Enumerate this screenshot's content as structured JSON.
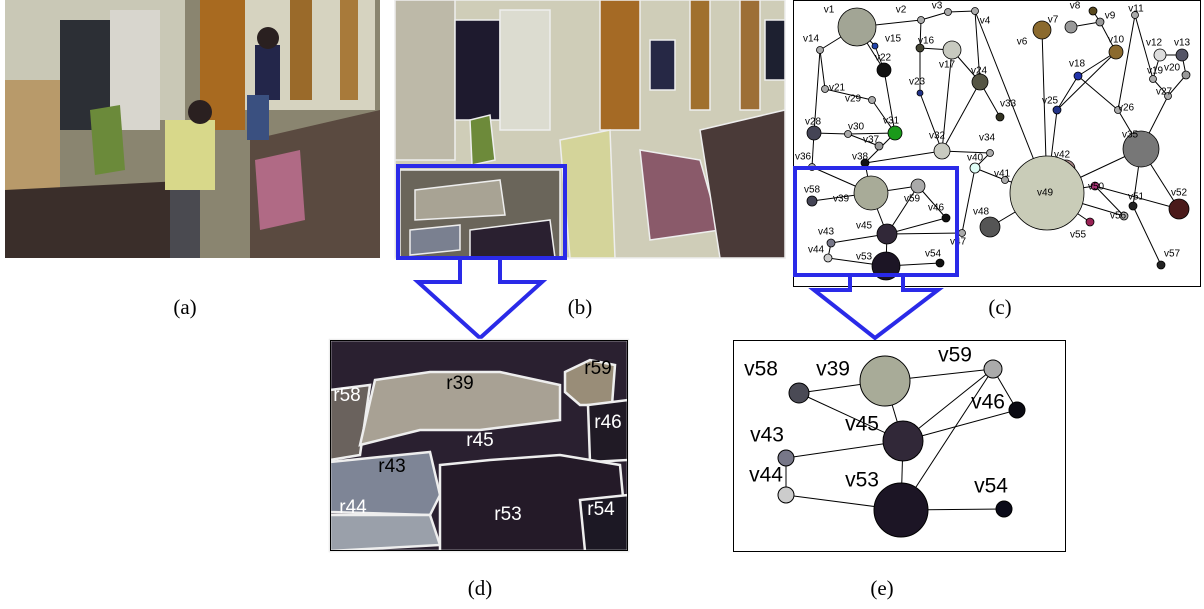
{
  "captions": [
    "(a)",
    "(b)",
    "(c)",
    "(d)",
    "(e)"
  ],
  "graph_c_nodes": [
    "v1",
    "v2",
    "v3",
    "v4",
    "v6",
    "v7",
    "v8",
    "v9",
    "v10",
    "v11",
    "v12",
    "v13",
    "v14",
    "v15",
    "v16",
    "v17",
    "v18",
    "v19",
    "v20",
    "v21",
    "v22",
    "v23",
    "v24",
    "v25",
    "v26",
    "v27",
    "v28",
    "v29",
    "v30",
    "v31",
    "v32",
    "v33",
    "v34",
    "v35",
    "v36",
    "v37",
    "v38",
    "v40",
    "v41",
    "v42",
    "v49",
    "v50",
    "v51",
    "v52",
    "v55",
    "v56",
    "v57",
    "v48",
    "v39",
    "v58",
    "v59",
    "v46",
    "v45",
    "v47",
    "v43",
    "v44",
    "v53",
    "v54"
  ],
  "regions_d": [
    "r58",
    "r39",
    "r59",
    "r46",
    "r45",
    "r43",
    "r44",
    "r53",
    "r54"
  ],
  "graph_e_nodes": [
    "v58",
    "v39",
    "v59",
    "v46",
    "v45",
    "v43",
    "v44",
    "v53",
    "v54"
  ]
}
